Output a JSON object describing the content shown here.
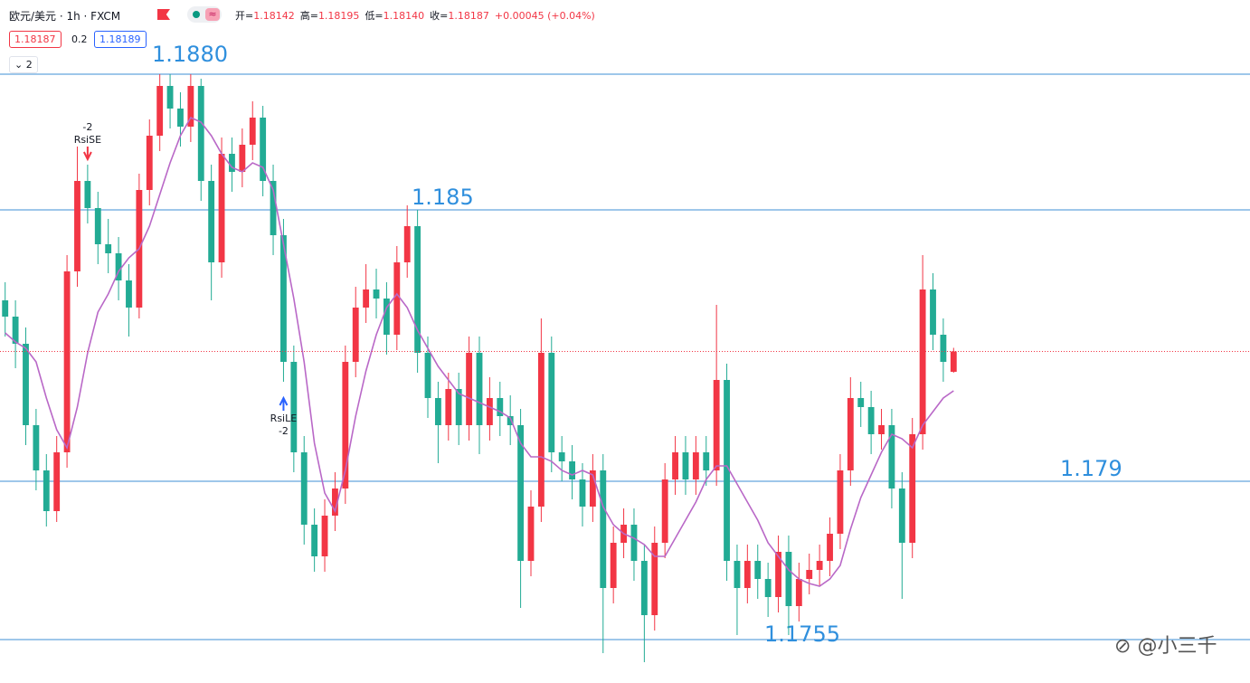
{
  "header": {
    "symbol": "欧元/美元 · 1h · FXCM",
    "ohlc": [
      {
        "label": "开=",
        "value": "1.18142"
      },
      {
        "label": "高=",
        "value": "1.18195"
      },
      {
        "label": "低=",
        "value": "1.18140"
      },
      {
        "label": "收=",
        "value": "1.18187"
      }
    ],
    "change": "+0.00045 (+0.04%)",
    "bid": 1.18187,
    "spread": 0.2,
    "ask": 1.18189,
    "indicator_count": 2
  },
  "chart_data": {
    "type": "candlestick",
    "open": [
      1.183,
      1.18264,
      1.18204,
      1.18024,
      1.17924,
      1.17834,
      1.17964,
      1.18364,
      1.18564,
      1.18504,
      1.18424,
      1.18404,
      1.18344,
      1.18284,
      1.18544,
      1.18664,
      1.18774,
      1.18724,
      1.18684,
      1.18774,
      1.18564,
      1.18384,
      1.18624,
      1.18584,
      1.18644,
      1.18704,
      1.18564,
      1.18444,
      1.18164,
      1.17964,
      1.17804,
      1.17734,
      1.17824,
      1.17884,
      1.18164,
      1.18284,
      1.18324,
      1.18304,
      1.18224,
      1.18384,
      1.18464,
      1.18184,
      1.18084,
      1.18024,
      1.18104,
      1.18024,
      1.18184,
      1.18024,
      1.18084,
      1.18044,
      1.18024,
      1.17724,
      1.17844,
      1.18184,
      1.17964,
      1.17944,
      1.17904,
      1.17844,
      1.17924,
      1.17664,
      1.17764,
      1.17804,
      1.17724,
      1.17604,
      1.17764,
      1.17904,
      1.17964,
      1.17904,
      1.17964,
      1.17924,
      1.18124,
      1.17724,
      1.17664,
      1.17724,
      1.17684,
      1.17644,
      1.17744,
      1.17624,
      1.17684,
      1.17704,
      1.17724,
      1.17784,
      1.17924,
      1.18084,
      1.18064,
      1.18004,
      1.18024,
      1.17884,
      1.17764,
      1.18004,
      1.18324,
      1.18224,
      1.18142
    ],
    "high": [
      1.1834,
      1.183,
      1.1824,
      1.1806,
      1.1796,
      1.18,
      1.184,
      1.1864,
      1.186,
      1.1854,
      1.1848,
      1.1844,
      1.1838,
      1.1858,
      1.187,
      1.188,
      1.188,
      1.1876,
      1.188,
      1.1879,
      1.186,
      1.1866,
      1.1866,
      1.1868,
      1.1874,
      1.1873,
      1.186,
      1.1848,
      1.182,
      1.18,
      1.1784,
      1.1786,
      1.1792,
      1.182,
      1.1833,
      1.1838,
      1.1837,
      1.1834,
      1.1842,
      1.1851,
      1.185,
      1.1822,
      1.1812,
      1.1814,
      1.1814,
      1.1822,
      1.1822,
      1.1813,
      1.1812,
      1.1809,
      1.1806,
      1.1788,
      1.1826,
      1.1822,
      1.18,
      1.1798,
      1.1794,
      1.1796,
      1.1796,
      1.178,
      1.1784,
      1.1784,
      1.1776,
      1.178,
      1.1794,
      1.18,
      1.18,
      1.18,
      1.18,
      1.1829,
      1.1816,
      1.1776,
      1.1776,
      1.1776,
      1.1772,
      1.1778,
      1.1778,
      1.1772,
      1.1774,
      1.1776,
      1.1782,
      1.1796,
      1.1813,
      1.1812,
      1.181,
      1.1806,
      1.1806,
      1.1792,
      1.1804,
      1.184,
      1.1836,
      1.1826,
      1.18195
    ],
    "low": [
      1.1822,
      1.1815,
      1.1798,
      1.1788,
      1.178,
      1.1781,
      1.1793,
      1.1833,
      1.1847,
      1.1838,
      1.1836,
      1.183,
      1.1822,
      1.1826,
      1.1851,
      1.1863,
      1.1868,
      1.1864,
      1.1865,
      1.1852,
      1.183,
      1.1835,
      1.1854,
      1.1855,
      1.1861,
      1.1853,
      1.184,
      1.1812,
      1.1792,
      1.1776,
      1.177,
      1.177,
      1.1779,
      1.1785,
      1.1813,
      1.1825,
      1.1826,
      1.1818,
      1.1819,
      1.1835,
      1.1814,
      1.1804,
      1.1794,
      1.1799,
      1.1798,
      1.1799,
      1.1796,
      1.1799,
      1.18,
      1.1798,
      1.1762,
      1.1769,
      1.1781,
      1.1792,
      1.179,
      1.1786,
      1.178,
      1.1781,
      1.1752,
      1.1763,
      1.1773,
      1.1768,
      1.175,
      1.1757,
      1.1773,
      1.1787,
      1.1787,
      1.1787,
      1.1789,
      1.1789,
      1.1768,
      1.1756,
      1.1763,
      1.1764,
      1.176,
      1.1761,
      1.1756,
      1.1759,
      1.1765,
      1.1767,
      1.1769,
      1.1775,
      1.1789,
      1.1802,
      1.1796,
      1.1797,
      1.1784,
      1.1764,
      1.1773,
      1.1797,
      1.1819,
      1.1812,
      1.1814
    ],
    "close": [
      1.18264,
      1.18204,
      1.18024,
      1.17924,
      1.17834,
      1.17964,
      1.18364,
      1.18564,
      1.18504,
      1.18424,
      1.18404,
      1.18344,
      1.18284,
      1.18544,
      1.18664,
      1.18774,
      1.18724,
      1.18684,
      1.18774,
      1.18564,
      1.18384,
      1.18624,
      1.18584,
      1.18644,
      1.18704,
      1.18564,
      1.18444,
      1.18164,
      1.17964,
      1.17804,
      1.17734,
      1.17824,
      1.17884,
      1.18164,
      1.18284,
      1.18324,
      1.18304,
      1.18224,
      1.18384,
      1.18464,
      1.18184,
      1.18084,
      1.18024,
      1.18104,
      1.18024,
      1.18184,
      1.18024,
      1.18084,
      1.18044,
      1.18024,
      1.17724,
      1.17844,
      1.18184,
      1.17964,
      1.17944,
      1.17904,
      1.17844,
      1.17924,
      1.17664,
      1.17764,
      1.17804,
      1.17724,
      1.17604,
      1.17764,
      1.17904,
      1.17964,
      1.17904,
      1.17964,
      1.17924,
      1.18124,
      1.17724,
      1.17664,
      1.17724,
      1.17684,
      1.17644,
      1.17744,
      1.17624,
      1.17684,
      1.17704,
      1.17724,
      1.17784,
      1.17924,
      1.18084,
      1.18064,
      1.18004,
      1.18024,
      1.17884,
      1.17764,
      1.18004,
      1.18324,
      1.18224,
      1.18164,
      1.18187
    ],
    "up_color": "#f23645",
    "down_color": "#22ab94",
    "ma": {
      "color": "#b968c7",
      "values": [
        1.18228,
        1.18208,
        1.18194,
        1.18164,
        1.18084,
        1.18014,
        1.17974,
        1.18064,
        1.18184,
        1.18274,
        1.18314,
        1.18364,
        1.18394,
        1.18414,
        1.18464,
        1.18534,
        1.18604,
        1.18664,
        1.18704,
        1.18694,
        1.18664,
        1.18624,
        1.18594,
        1.18584,
        1.18604,
        1.18594,
        1.18544,
        1.18424,
        1.18304,
        1.18164,
        1.17984,
        1.17874,
        1.17834,
        1.17924,
        1.18044,
        1.18144,
        1.18224,
        1.18284,
        1.18314,
        1.18284,
        1.18234,
        1.18194,
        1.18154,
        1.18124,
        1.18094,
        1.18084,
        1.18074,
        1.18064,
        1.18054,
        1.1804,
        1.17984,
        1.17954,
        1.17954,
        1.17944,
        1.17924,
        1.17914,
        1.17924,
        1.17914,
        1.17844,
        1.17804,
        1.17784,
        1.17774,
        1.1776,
        1.17734,
        1.17734,
        1.17774,
        1.17814,
        1.17854,
        1.17904,
        1.17934,
        1.17934,
        1.17894,
        1.17854,
        1.17814,
        1.17764,
        1.17734,
        1.17704,
        1.17684,
        1.17674,
        1.17668,
        1.17684,
        1.17714,
        1.17794,
        1.17864,
        1.17914,
        1.17964,
        1.18004,
        1.17994,
        1.17974,
        1.18024,
        1.18054,
        1.18084,
        1.181
      ]
    },
    "ylim": [
      1.17454,
      1.18964
    ],
    "levels": [
      {
        "value": 1.188,
        "label": "1.1880"
      },
      1.185,
      1.179,
      1.1755
    ],
    "level_color": "#3d8fd6",
    "last_price_line": true,
    "signals": [
      {
        "qty": -2,
        "label": "RsiSE"
      },
      {
        "qty": -2,
        "label": "RsiLE"
      }
    ]
  },
  "watermark": "@小三千"
}
